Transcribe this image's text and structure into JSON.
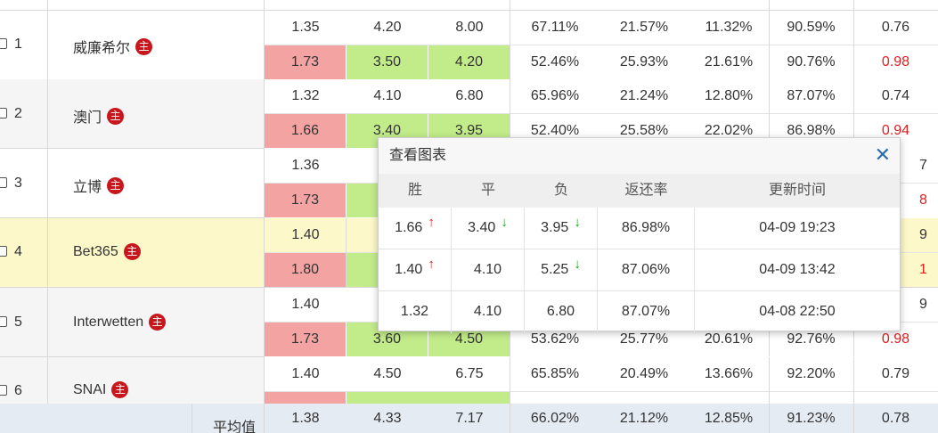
{
  "rows": [
    {
      "num": "1",
      "name": "威廉希尔",
      "badge": "主",
      "open": [
        "1.35",
        "4.20",
        "8.00",
        "67.11%",
        "21.57%",
        "11.32%",
        "90.59%",
        "0.76"
      ],
      "live": [
        "1.73",
        "3.50",
        "4.20",
        "52.46%",
        "25.93%",
        "21.61%",
        "90.76%",
        "0.98"
      ]
    },
    {
      "num": "2",
      "name": "澳门",
      "badge": "主",
      "open": [
        "1.32",
        "4.10",
        "6.80",
        "65.96%",
        "21.24%",
        "12.80%",
        "87.07%",
        "0.74"
      ],
      "live": [
        "1.66",
        "3.40",
        "3.95",
        "52.40%",
        "25.58%",
        "22.02%",
        "86.98%",
        "0.94"
      ]
    },
    {
      "num": "3",
      "name": "立博",
      "badge": "主",
      "open": [
        "1.36",
        "",
        "",
        "",
        "",
        "",
        "",
        ""
      ],
      "live": [
        "1.73",
        "",
        "",
        "",
        "",
        "",
        "",
        ""
      ]
    },
    {
      "num": "4",
      "name": "Bet365",
      "badge": "主",
      "open": [
        "1.40",
        "",
        "",
        "",
        "",
        "",
        "",
        ""
      ],
      "live": [
        "1.80",
        "",
        "",
        "",
        "",
        "",
        "",
        ""
      ]
    },
    {
      "num": "5",
      "name": "Interwetten",
      "badge": "主",
      "open": [
        "1.40",
        "",
        "",
        "",
        "",
        "",
        "",
        ""
      ],
      "live": [
        "1.73",
        "3.60",
        "4.50",
        "53.62%",
        "25.77%",
        "20.61%",
        "92.76%",
        "0.98"
      ]
    },
    {
      "num": "6",
      "name": "SNAI",
      "badge": "主",
      "open": [
        "1.40",
        "4.50",
        "6.75",
        "65.85%",
        "20.49%",
        "13.66%",
        "92.20%",
        "0.79"
      ],
      "live": [
        "",
        "",
        "",
        "",
        "",
        "",
        "",
        ""
      ]
    }
  ],
  "partial_right": {
    "r3a": "7",
    "r3b": "8",
    "r4a": "9",
    "r4b": "1",
    "r5a": "9"
  },
  "avg": {
    "label": "平均值",
    "values": [
      "1.38",
      "4.33",
      "7.17",
      "66.02%",
      "21.12%",
      "12.85%",
      "91.23%",
      "0.78"
    ]
  },
  "popup": {
    "title": "查看图表",
    "close": "✕",
    "headers": [
      "胜",
      "平",
      "负",
      "返还率",
      "更新时间"
    ],
    "rows": [
      {
        "win": "1.66",
        "win_dir": "up",
        "draw": "3.40",
        "draw_dir": "down",
        "lose": "3.95",
        "lose_dir": "down",
        "rate": "86.98%",
        "time": "04-09 19:23"
      },
      {
        "win": "1.40",
        "win_dir": "up",
        "draw": "4.10",
        "draw_dir": "",
        "lose": "5.25",
        "lose_dir": "down",
        "rate": "87.06%",
        "time": "04-09 13:42"
      },
      {
        "win": "1.32",
        "win_dir": "",
        "draw": "4.10",
        "draw_dir": "",
        "lose": "6.80",
        "lose_dir": "",
        "rate": "87.07%",
        "time": "04-08 22:50"
      }
    ]
  },
  "colors": {
    "red_cell": "#f4a3a3",
    "green_cell": "#c2ec8a",
    "red_text": "#e02020",
    "badge": "#c8161d",
    "highlight_row": "#fdf8c9"
  }
}
